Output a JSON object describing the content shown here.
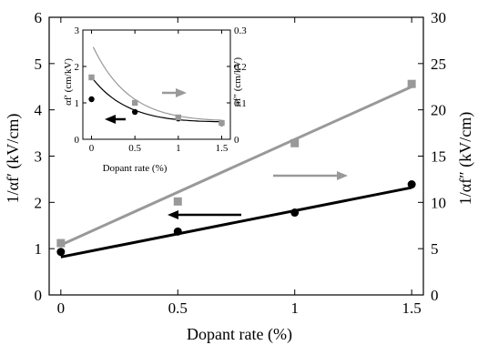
{
  "chart_data": [
    {
      "type": "scatter",
      "xlabel": "Dopant rate (%)",
      "ylabel_left": "1/αf′ (kV/cm)",
      "ylabel_right": "1/αf″ (kV/cm)",
      "xlim": [
        -0.05,
        1.55
      ],
      "ylim_left": [
        0,
        6
      ],
      "ylim_right": [
        0,
        30
      ],
      "x_ticks": [
        "0",
        "0.5",
        "1",
        "1.5"
      ],
      "y_left_ticks": [
        "0",
        "1",
        "2",
        "3",
        "4",
        "5",
        "6"
      ],
      "y_right_ticks": [
        "0",
        "5",
        "10",
        "15",
        "20",
        "25",
        "30"
      ],
      "series": [
        {
          "axis": "left",
          "color": "#000000",
          "marker": "circle",
          "x": [
            0,
            0.5,
            1,
            1.5
          ],
          "y": [
            0.93,
            1.37,
            1.78,
            2.39
          ],
          "fit": {
            "x": [
              0,
              1.5
            ],
            "y": [
              0.82,
              2.32
            ]
          }
        },
        {
          "axis": "right",
          "color": "#999999",
          "marker": "square",
          "x": [
            0,
            0.5,
            1,
            1.5
          ],
          "y": [
            5.6,
            10.1,
            16.4,
            22.8
          ],
          "fit": {
            "x": [
              0,
              1.5
            ],
            "y": [
              5.4,
              22.5
            ]
          }
        }
      ]
    },
    {
      "type": "scatter",
      "xlabel": "Dopant rate (%)",
      "ylabel_left": "αf′ (cm/kV)",
      "ylabel_right": "αf″ (cm/kV)",
      "xlim": [
        -0.1,
        1.6
      ],
      "ylim_left": [
        0,
        3
      ],
      "ylim_right": [
        0,
        0.3
      ],
      "x_ticks": [
        "0",
        "0.5",
        "1",
        "1.5"
      ],
      "y_left_ticks": [
        "0",
        "1",
        "2",
        "3"
      ],
      "y_right_ticks": [
        "0",
        "0.1",
        "0.2",
        "0.3"
      ],
      "series": [
        {
          "axis": "left",
          "color": "#000000",
          "marker": "circle",
          "x": [
            0,
            0.5,
            1,
            1.5
          ],
          "y": [
            1.1,
            0.75,
            0.57,
            0.44
          ]
        },
        {
          "axis": "right",
          "color": "#999999",
          "marker": "square",
          "x": [
            0,
            0.5,
            1,
            1.5
          ],
          "y": [
            0.17,
            0.1,
            0.06,
            0.045
          ]
        }
      ]
    }
  ]
}
